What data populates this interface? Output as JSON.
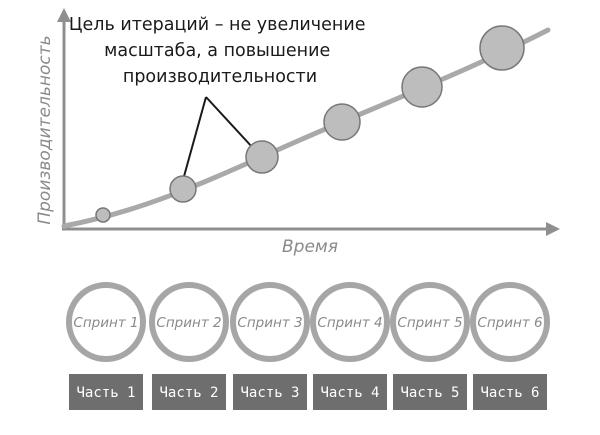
{
  "diagram": {
    "y_axis_title": "Производительность",
    "x_axis_title": "Время",
    "annotation_lines": [
      "Цель итераций – не увеличение",
      "масштаба, а повышение",
      "производительности"
    ],
    "iteration_levels": [
      1,
      2,
      3,
      4,
      5,
      6
    ],
    "sprints": [
      "Спринт 1",
      "Спринт 2",
      "Спринт 3",
      "Спринт 4",
      "Спринт 5",
      "Спринт 6"
    ],
    "parts": [
      "Часть 1",
      "Часть 2",
      "Часть 3",
      "Часть 4",
      "Часть 5",
      "Часть 6"
    ]
  },
  "colors": {
    "axis": "#8f8f8f",
    "curve": "#a9a9a9",
    "circle_fill": "#bdbdbd",
    "circle_stroke": "#777777",
    "sprint_ring": "#a6a6a6",
    "part_box": "#6e6e6e",
    "text_dark": "#1a1a1a",
    "text_gray": "#8a8a8a"
  }
}
